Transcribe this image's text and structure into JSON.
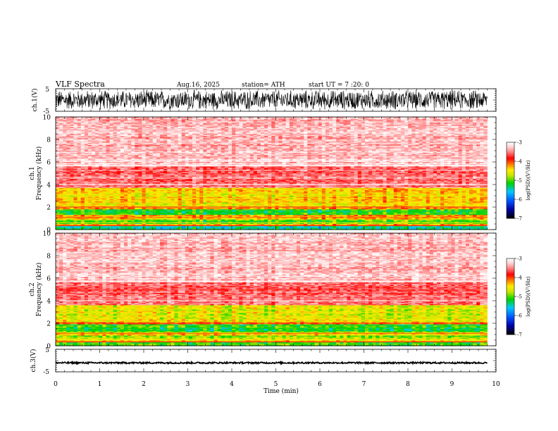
{
  "header": {
    "title": "VLF  Spectra",
    "date": "Aug.16, 2025",
    "station": "station= ATH",
    "start": "start  UT  =    7  :20: 0"
  },
  "chart_data": [
    {
      "type": "line",
      "name": "ch1-waveform",
      "ylabel": "ch.1(V)",
      "ylim": [
        -5,
        5
      ],
      "yticks": [
        "5",
        "-5"
      ],
      "xlim": [
        0,
        10
      ],
      "data_end_min": 9.8,
      "amplitude_fraction": 0.95
    },
    {
      "type": "heatmap",
      "name": "ch1-spectrogram",
      "ylabel_top": "ch.1",
      "ylabel": "Frequency  (kHz)",
      "ylim": [
        0,
        10
      ],
      "yticks": [
        "0",
        "2",
        "4",
        "6",
        "8",
        "10"
      ],
      "xlim": [
        0,
        10
      ],
      "data_end_min": 9.8,
      "bands": [
        {
          "f0": 0.0,
          "f1": 0.3,
          "level": -5.4
        },
        {
          "f0": 0.3,
          "f1": 0.5,
          "level": -4.4
        },
        {
          "f0": 0.5,
          "f1": 0.9,
          "level": -5.0
        },
        {
          "f0": 0.9,
          "f1": 1.3,
          "level": -4.3
        },
        {
          "f0": 1.3,
          "f1": 1.8,
          "level": -5.1
        },
        {
          "f0": 1.8,
          "f1": 2.0,
          "level": -4.2
        },
        {
          "f0": 2.0,
          "f1": 3.7,
          "level": -4.4
        },
        {
          "f0": 3.7,
          "f1": 4.1,
          "level": -3.6
        },
        {
          "f0": 4.1,
          "f1": 5.6,
          "level": -3.55
        },
        {
          "f0": 5.6,
          "f1": 10.0,
          "level": -3.3
        }
      ]
    },
    {
      "type": "heatmap",
      "name": "ch2-spectrogram",
      "ylabel_top": "ch.2",
      "ylabel": "Frequency  (kHz)",
      "ylim": [
        0,
        10
      ],
      "yticks": [
        "0",
        "2",
        "4",
        "6",
        "8",
        "10"
      ],
      "xlim": [
        0,
        10
      ],
      "data_end_min": 9.8,
      "bands": [
        {
          "f0": 0.0,
          "f1": 0.3,
          "level": -5.0
        },
        {
          "f0": 0.3,
          "f1": 0.6,
          "level": -4.5
        },
        {
          "f0": 0.6,
          "f1": 0.9,
          "level": -4.9
        },
        {
          "f0": 0.9,
          "f1": 1.2,
          "level": -4.3
        },
        {
          "f0": 1.2,
          "f1": 1.9,
          "level": -5.1
        },
        {
          "f0": 1.9,
          "f1": 2.1,
          "level": -4.2
        },
        {
          "f0": 2.1,
          "f1": 3.6,
          "level": -4.6
        },
        {
          "f0": 3.6,
          "f1": 4.1,
          "level": -3.6
        },
        {
          "f0": 4.1,
          "f1": 5.6,
          "level": -3.6
        },
        {
          "f0": 5.6,
          "f1": 10.0,
          "level": -3.3
        }
      ]
    },
    {
      "type": "line",
      "name": "ch3-waveform",
      "ylabel": "ch.3(V)",
      "ylim": [
        -5,
        5
      ],
      "yticks": [
        "5",
        "-5"
      ],
      "xlim": [
        0,
        10
      ],
      "data_end_min": 9.8,
      "offset": -1.0,
      "amplitude": 0.35
    }
  ],
  "colorbar": {
    "label": "log(PSD)(V²/Hz)",
    "ticks": [
      "-3",
      "-4",
      "-5",
      "-6",
      "-7"
    ],
    "range": [
      -7,
      -3
    ]
  },
  "xaxis": {
    "label": "Time  (min)",
    "ticks": [
      "0",
      "1",
      "2",
      "3",
      "4",
      "5",
      "6",
      "7",
      "8",
      "9",
      "10"
    ]
  }
}
